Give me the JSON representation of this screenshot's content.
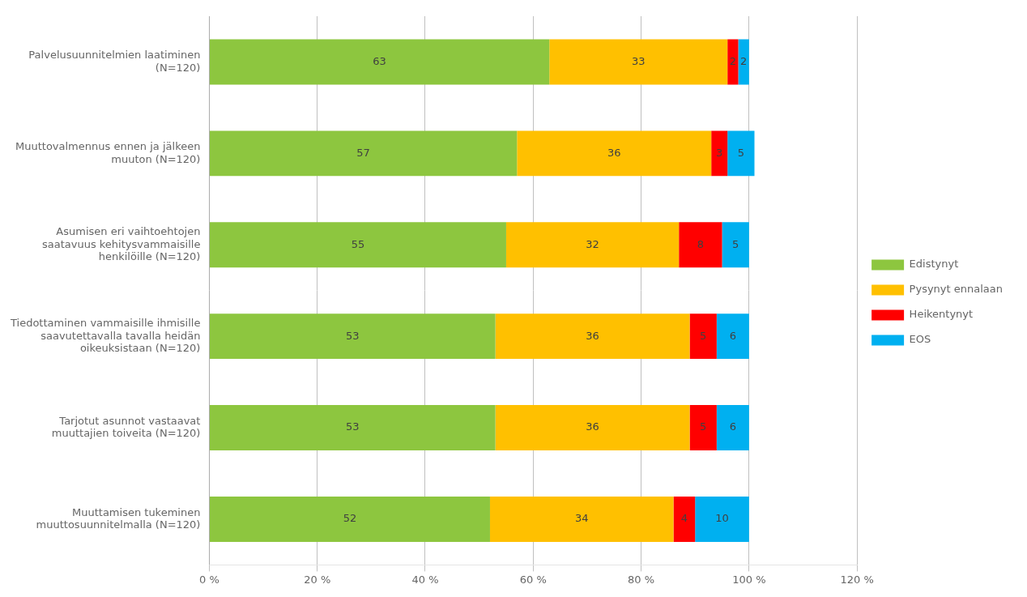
{
  "chart_data": {
    "type": "bar",
    "orientation": "horizontal",
    "stacked": true,
    "data_labels": true,
    "grid": "x",
    "legend": "right",
    "categories": [
      "Palvelusuunnitelmien laatiminen\n(N=120)",
      "Muuttovalmennus ennen ja jälkeen\nmuuton (N=120)",
      "Asumisen eri vaihtoehtojen\nsaatavuus kehitysvammaisille\nhenkilöille (N=120)",
      "Tiedottaminen vammaisille ihmisille\nsaavutettavalla tavalla heidän\noikeuksistaan (N=120)",
      "Tarjotut asunnot vastaavat\nmuuttajien toiveita (N=120)",
      "Muuttamisen tukeminen\nmuuttosuunnitelmalla (N=120)"
    ],
    "series": [
      {
        "name": "Edistynyt",
        "color": "#8DC63F",
        "values": [
          63,
          57,
          55,
          53,
          53,
          52
        ]
      },
      {
        "name": "Pysynyt ennalaan",
        "color": "#FFC000",
        "values": [
          33,
          36,
          32,
          36,
          36,
          34
        ]
      },
      {
        "name": "Heikentynyt",
        "color": "#FF0000",
        "values": [
          2,
          3,
          8,
          5,
          5,
          4
        ]
      },
      {
        "name": "EOS",
        "color": "#00B0F0",
        "values": [
          2,
          5,
          5,
          6,
          6,
          10
        ]
      }
    ],
    "xlim": [
      0,
      120
    ],
    "xticks": [
      {
        "value": 0,
        "label": "0 %"
      },
      {
        "value": 20,
        "label": "20 %"
      },
      {
        "value": 40,
        "label": "40 %"
      },
      {
        "value": 60,
        "label": "60 %"
      },
      {
        "value": 80,
        "label": "80 %"
      },
      {
        "value": 100,
        "label": "100 %"
      },
      {
        "value": 120,
        "label": "120 %"
      }
    ]
  }
}
